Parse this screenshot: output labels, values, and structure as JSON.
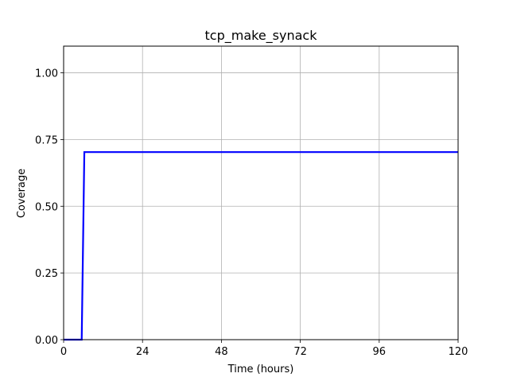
{
  "chart_data": {
    "type": "line",
    "title": "tcp_make_synack",
    "xlabel": "Time (hours)",
    "ylabel": "Coverage",
    "xlim": [
      0,
      120
    ],
    "ylim": [
      0,
      1.1
    ],
    "xticks": [
      0,
      24,
      48,
      72,
      96,
      120
    ],
    "xtick_labels": [
      "0",
      "24",
      "48",
      "72",
      "96",
      "120"
    ],
    "yticks": [
      0,
      0.25,
      0.5,
      0.75,
      1.0
    ],
    "ytick_labels": [
      "0.00",
      "0.25",
      "0.50",
      "0.75",
      "1.00"
    ],
    "grid": true,
    "series": [
      {
        "color": "#0000ff",
        "x": [
          0,
          5.5,
          6.3,
          120
        ],
        "y": [
          0,
          0,
          0.703,
          0.703
        ]
      }
    ]
  }
}
